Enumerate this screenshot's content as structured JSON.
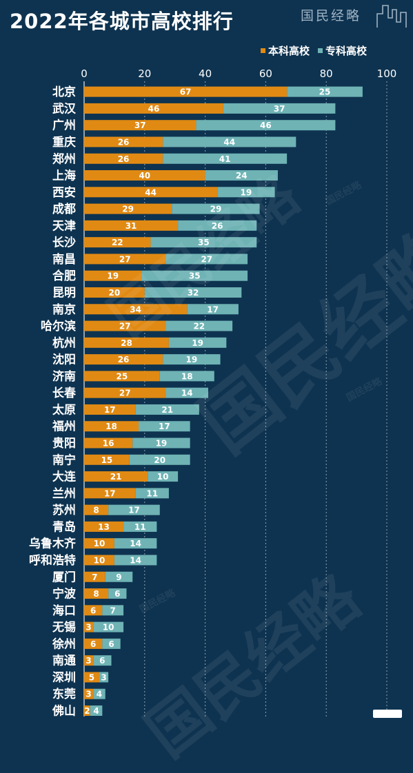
{
  "title": "2022年各城市高校排行",
  "brand": "国民经略",
  "colors": {
    "background": "#0e3350",
    "undergrad": "#e08a14",
    "vocational": "#6fb3b5",
    "grid": "#ffffff",
    "text": "#ffffff"
  },
  "chart_data": {
    "type": "bar",
    "orientation": "horizontal",
    "stacked": true,
    "legend_position": "top-right",
    "grid": true,
    "xlim": [
      0,
      100
    ],
    "xticks": [
      0,
      20,
      40,
      60,
      80,
      100
    ],
    "categories": [
      "北京",
      "武汉",
      "广州",
      "重庆",
      "郑州",
      "上海",
      "西安",
      "成都",
      "天津",
      "长沙",
      "南昌",
      "合肥",
      "昆明",
      "南京",
      "哈尔滨",
      "杭州",
      "沈阳",
      "济南",
      "长春",
      "太原",
      "福州",
      "贵阳",
      "南宁",
      "大连",
      "兰州",
      "苏州",
      "青岛",
      "乌鲁木齐",
      "呼和浩特",
      "厦门",
      "宁波",
      "海口",
      "无锡",
      "徐州",
      "南通",
      "深圳",
      "东莞",
      "佛山"
    ],
    "series": [
      {
        "name": "本科高校",
        "values": [
          67,
          46,
          37,
          26,
          26,
          40,
          44,
          29,
          31,
          22,
          27,
          19,
          20,
          34,
          27,
          28,
          26,
          25,
          27,
          17,
          18,
          16,
          15,
          21,
          17,
          8,
          13,
          10,
          10,
          7,
          8,
          6,
          3,
          6,
          3,
          5,
          3,
          2
        ]
      },
      {
        "name": "专科高校",
        "values": [
          25,
          37,
          46,
          44,
          41,
          24,
          19,
          29,
          26,
          35,
          27,
          35,
          32,
          17,
          22,
          19,
          19,
          18,
          14,
          21,
          17,
          19,
          20,
          10,
          11,
          17,
          11,
          14,
          14,
          9,
          6,
          7,
          10,
          6,
          6,
          3,
          4,
          4
        ]
      }
    ]
  }
}
